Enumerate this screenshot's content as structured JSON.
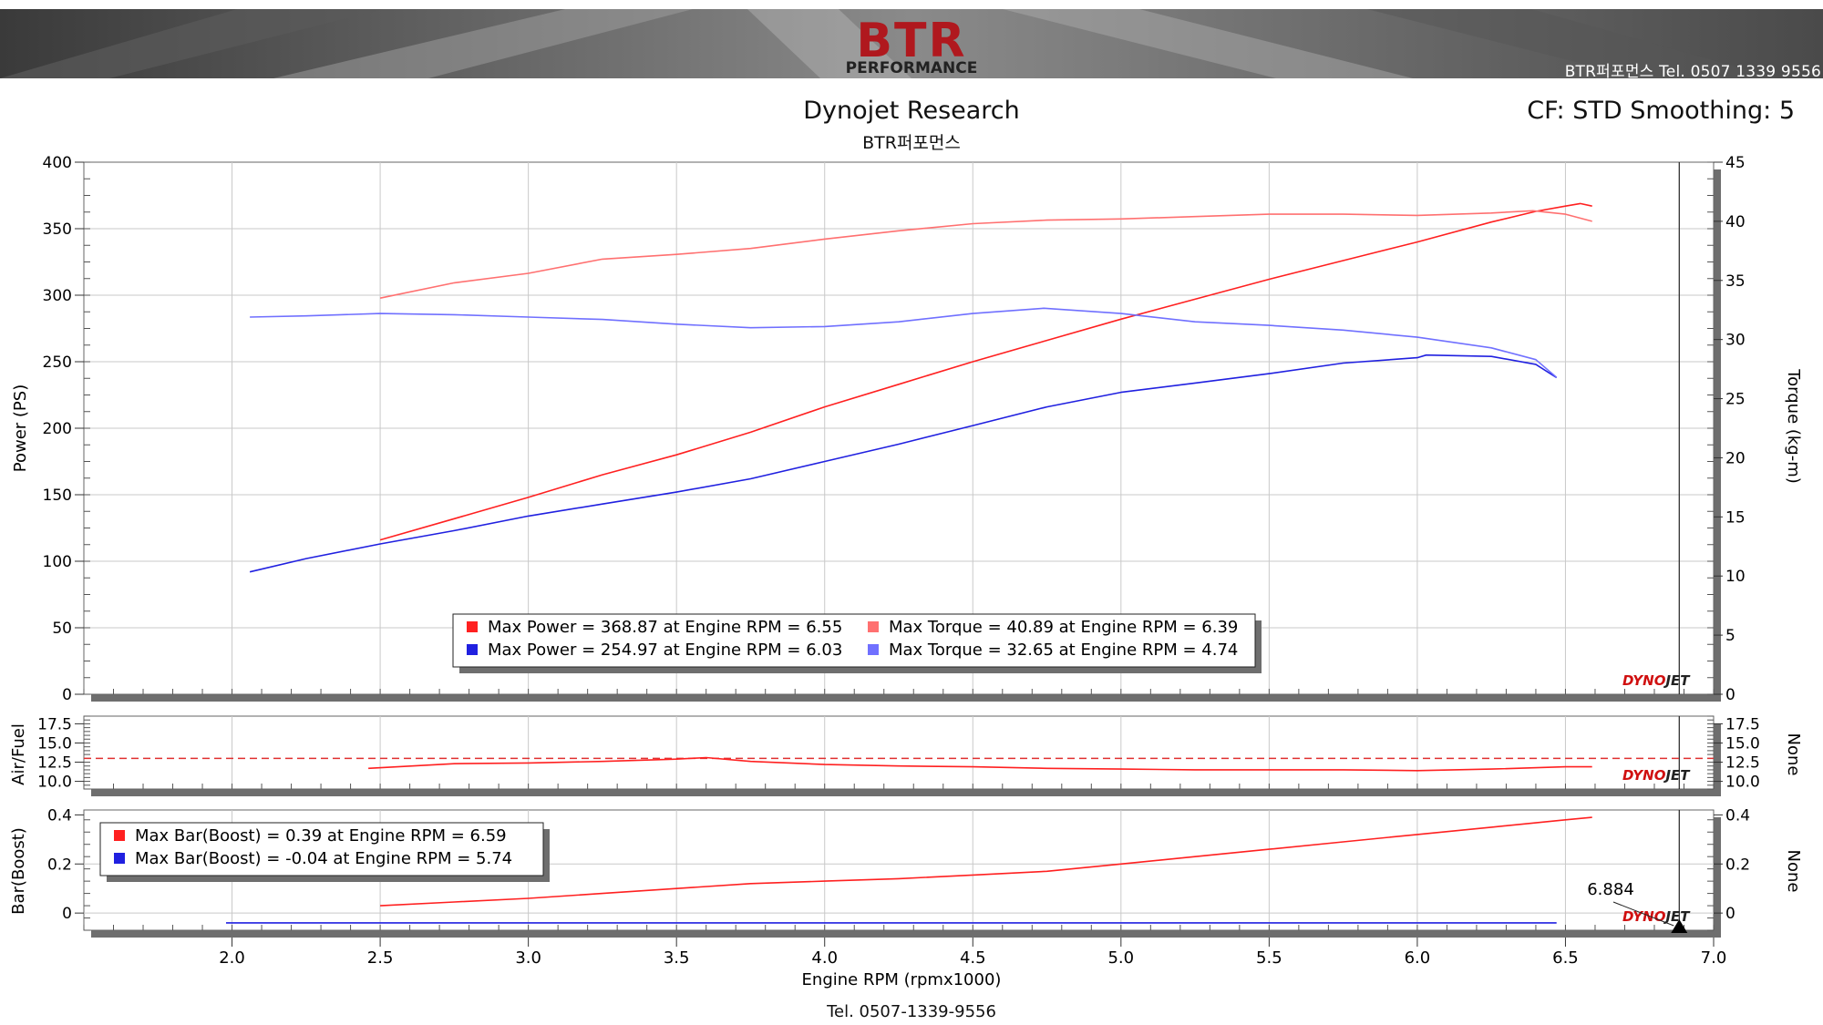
{
  "banner": {
    "logo_text": "BTR",
    "logo_subtext": "PERFORMANCE",
    "phone": "BTR퍼포먼스 Tel. 0507 1339 9556"
  },
  "header": {
    "title": "Dynojet Research",
    "subtitle": "BTR퍼포먼스",
    "cf_info": "CF: STD Smoothing: 5"
  },
  "footer": {
    "tel": "Tel. 0507-1339-9556"
  },
  "colors": {
    "red_power": "#ff2020",
    "red_torque": "#ff7070",
    "blue_power": "#2020e0",
    "blue_torque": "#7070ff",
    "grid": "#c9c9c9",
    "shadow": "#6e6e6e"
  },
  "chart_data": [
    {
      "type": "line",
      "title": "Dynojet Research",
      "subtitle": "BTR퍼포먼스",
      "xlabel": "Engine RPM (rpmx1000)",
      "ylabel": "Power (PS)",
      "y2label": "Torque (kg-m)",
      "xlim": [
        1.5,
        7.0
      ],
      "ylim": [
        0,
        400
      ],
      "y2lim": [
        0,
        45
      ],
      "xticks": [
        "2.0",
        "2.5",
        "3.0",
        "3.5",
        "4.0",
        "4.5",
        "5.0",
        "5.5",
        "6.0",
        "6.5",
        "7.0"
      ],
      "yticks": [
        "0",
        "50",
        "100",
        "150",
        "200",
        "250",
        "300",
        "350",
        "400"
      ],
      "y2ticks": [
        "0",
        "5",
        "10",
        "15",
        "20",
        "25",
        "30",
        "35",
        "40",
        "45"
      ],
      "cursor_rpm": 6.884,
      "series": [
        {
          "name": "Max Power (red)",
          "axis": "left",
          "color": "#ff2020",
          "x": [
            2.5,
            2.75,
            3.0,
            3.25,
            3.5,
            3.75,
            4.0,
            4.25,
            4.5,
            4.75,
            5.0,
            5.25,
            5.5,
            5.75,
            6.0,
            6.25,
            6.4,
            6.5,
            6.55,
            6.59
          ],
          "y": [
            116,
            132,
            148,
            165,
            180,
            197,
            216,
            233,
            250,
            266,
            282,
            297,
            312,
            326,
            340,
            355,
            363,
            367,
            368.87,
            367
          ]
        },
        {
          "name": "Max Torque (red)",
          "axis": "right",
          "color": "#ff7070",
          "x": [
            2.5,
            2.75,
            3.0,
            3.25,
            3.5,
            3.75,
            4.0,
            4.25,
            4.5,
            4.75,
            5.0,
            5.25,
            5.5,
            5.75,
            6.0,
            6.25,
            6.39,
            6.5,
            6.59
          ],
          "y": [
            33.5,
            34.8,
            35.6,
            36.8,
            37.2,
            37.7,
            38.5,
            39.2,
            39.8,
            40.1,
            40.2,
            40.4,
            40.6,
            40.6,
            40.5,
            40.7,
            40.89,
            40.6,
            40.0
          ]
        },
        {
          "name": "Max Power (blue)",
          "axis": "left",
          "color": "#2020e0",
          "x": [
            2.06,
            2.25,
            2.5,
            2.75,
            3.0,
            3.25,
            3.5,
            3.75,
            4.0,
            4.25,
            4.5,
            4.75,
            5.0,
            5.25,
            5.5,
            5.75,
            6.0,
            6.03,
            6.25,
            6.4,
            6.47
          ],
          "y": [
            92,
            102,
            113,
            123,
            134,
            143,
            152,
            162,
            175,
            188,
            202,
            216,
            227,
            234,
            241,
            249,
            253,
            254.97,
            254,
            248,
            238
          ]
        },
        {
          "name": "Max Torque (blue)",
          "axis": "right",
          "color": "#7070ff",
          "x": [
            2.06,
            2.25,
            2.5,
            2.75,
            3.0,
            3.25,
            3.5,
            3.75,
            4.0,
            4.25,
            4.5,
            4.74,
            5.0,
            5.25,
            5.5,
            5.75,
            6.0,
            6.25,
            6.4,
            6.47
          ],
          "y": [
            31.9,
            32.0,
            32.2,
            32.1,
            31.9,
            31.7,
            31.3,
            31.0,
            31.1,
            31.5,
            32.2,
            32.65,
            32.2,
            31.5,
            31.2,
            30.8,
            30.2,
            29.3,
            28.3,
            26.8
          ]
        }
      ],
      "legend": [
        {
          "label": "Max Power = 368.87 at Engine RPM = 6.55",
          "color": "#ff2020"
        },
        {
          "label": "Max Torque = 40.89 at Engine RPM = 6.39",
          "color": "#ff7070"
        },
        {
          "label": "Max Power = 254.97 at Engine RPM = 6.03",
          "color": "#2020e0"
        },
        {
          "label": "Max Torque = 32.65 at Engine RPM = 4.74",
          "color": "#7070ff"
        }
      ]
    },
    {
      "type": "line",
      "ylabel": "Air/Fuel",
      "y2label": "None",
      "xlim": [
        1.5,
        7.0
      ],
      "ylim": [
        9.0,
        18.5
      ],
      "yticks": [
        "10.0",
        "12.5",
        "15.0",
        "17.5"
      ],
      "reference_line": 13.0,
      "series": [
        {
          "name": "Air/Fuel (red)",
          "color": "#ff2020",
          "x": [
            2.46,
            2.75,
            3.0,
            3.25,
            3.5,
            3.6,
            3.75,
            4.0,
            4.25,
            4.5,
            4.75,
            5.0,
            5.25,
            5.5,
            5.75,
            6.0,
            6.25,
            6.5,
            6.59
          ],
          "y": [
            11.7,
            12.3,
            12.4,
            12.6,
            12.9,
            13.1,
            12.6,
            12.2,
            12.0,
            11.9,
            11.7,
            11.6,
            11.5,
            11.5,
            11.5,
            11.4,
            11.6,
            11.9,
            11.9
          ]
        }
      ]
    },
    {
      "type": "line",
      "ylabel": "Bar(Boost)",
      "y2label": "None",
      "xlim": [
        1.5,
        7.0
      ],
      "ylim": [
        -0.07,
        0.42
      ],
      "yticks": [
        "0",
        "0.2",
        "0.4"
      ],
      "cursor_label": "6.884",
      "series": [
        {
          "name": "Max Bar(Boost) (red)",
          "color": "#ff2020",
          "x": [
            2.5,
            2.75,
            3.0,
            3.25,
            3.5,
            3.75,
            4.0,
            4.25,
            4.5,
            4.75,
            5.0,
            5.25,
            5.5,
            5.75,
            6.0,
            6.25,
            6.5,
            6.59
          ],
          "y": [
            0.03,
            0.045,
            0.06,
            0.08,
            0.1,
            0.12,
            0.13,
            0.14,
            0.155,
            0.17,
            0.2,
            0.23,
            0.26,
            0.29,
            0.32,
            0.35,
            0.38,
            0.39
          ]
        },
        {
          "name": "Max Bar(Boost) (blue)",
          "color": "#2020e0",
          "x": [
            1.98,
            2.5,
            3.0,
            3.5,
            4.0,
            4.5,
            5.0,
            5.5,
            5.74,
            6.0,
            6.47
          ],
          "y": [
            -0.04,
            -0.04,
            -0.04,
            -0.04,
            -0.04,
            -0.04,
            -0.04,
            -0.04,
            -0.04,
            -0.04,
            -0.04
          ]
        }
      ],
      "legend": [
        {
          "label": "Max Bar(Boost) = 0.39 at Engine RPM = 6.59",
          "color": "#ff2020"
        },
        {
          "label": "Max Bar(Boost) = -0.04 at Engine RPM = 5.74",
          "color": "#2020e0"
        }
      ]
    }
  ]
}
